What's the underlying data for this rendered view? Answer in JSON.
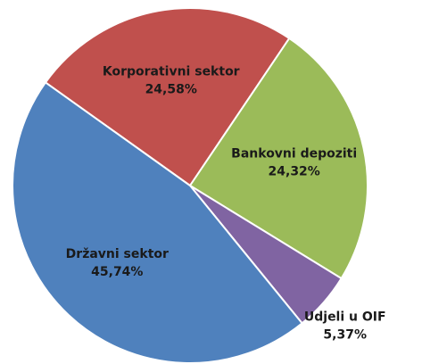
{
  "chart_data": {
    "type": "pie",
    "categories": [
      "Korporativni sektor",
      "Bankovni depoziti",
      "Udjeli u OIF",
      "Državni sektor"
    ],
    "values": [
      24.58,
      24.32,
      5.37,
      45.74
    ],
    "value_labels": [
      "24,58%",
      "24,32%",
      "5,37%",
      "45,74%"
    ],
    "colors": [
      "#c0504d",
      "#9bbb59",
      "#8064a2",
      "#4f81bd"
    ]
  }
}
